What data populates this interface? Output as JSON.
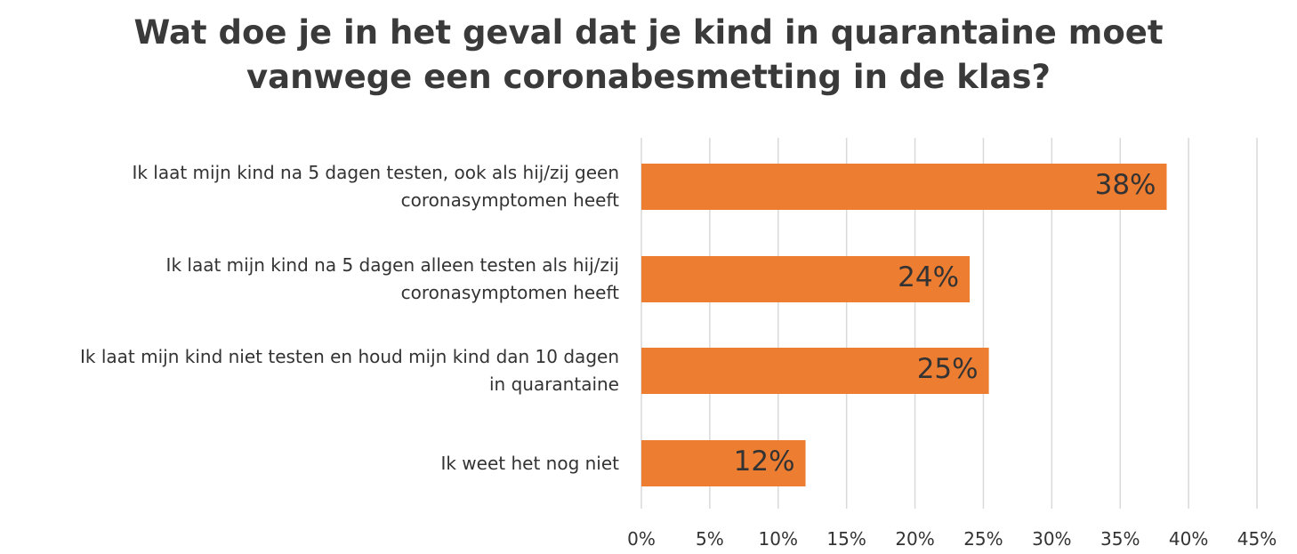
{
  "chart_data": {
    "type": "bar",
    "orientation": "horizontal",
    "title_lines": [
      "Wat doe je in het geval dat je kind in quarantaine moet",
      "vanwege een coronabesmetting in de klas?"
    ],
    "categories": [
      [
        "Ik laat mijn kind na 5 dagen testen, ook als hij/zij geen",
        "coronasymptomen heeft"
      ],
      [
        "Ik laat mijn kind na 5 dagen alleen testen als hij/zij",
        "coronasymptomen heeft"
      ],
      [
        "Ik laat mijn kind niet testen en houd mijn kind dan 10 dagen",
        "in quarantaine"
      ],
      [
        "Ik weet het nog niet"
      ]
    ],
    "values": [
      38.4,
      24.0,
      25.4,
      12.0
    ],
    "data_labels": [
      "38%",
      "24%",
      "25%",
      "12%"
    ],
    "x_ticks": [
      "0%",
      "5%",
      "10%",
      "15%",
      "20%",
      "25%",
      "30%",
      "35%",
      "40%",
      "45%"
    ],
    "xlim": [
      0,
      45
    ],
    "grid": "vertical",
    "bar_color": "#ED7D31",
    "grid_color": "#D9D9D9"
  }
}
